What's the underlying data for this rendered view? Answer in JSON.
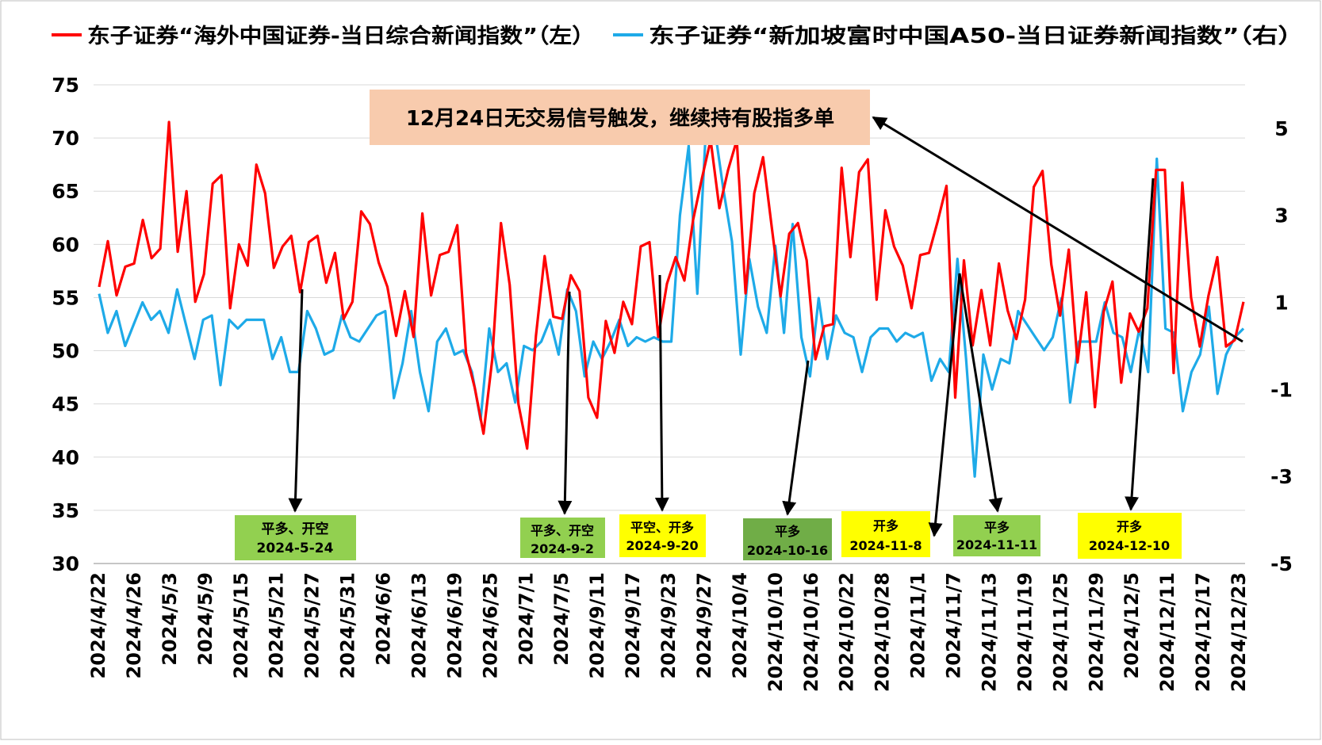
{
  "legend": {
    "red_label": "东子证券“海外中国证券-当日综合新闻指数”（左）",
    "blue_label": "东子证券“新加坡富时中国A50-当日证券新闻指数”（右）"
  },
  "callout": {
    "text": "12月24日无交易信号触发，继续持有股指多单"
  },
  "colors": {
    "red": "#FF0000",
    "blue": "#1EAAE8",
    "callout_bg": "#F8CBAD",
    "green": "#92D050",
    "dark_green": "#70AD47",
    "yellow": "#FFFF00"
  },
  "signals": [
    {
      "line1": "平多、开空",
      "line2": "2024-5-24"
    },
    {
      "line1": "平多、开空",
      "line2": "2024-9-2"
    },
    {
      "line1": "平空、开多",
      "line2": "2024-9-20"
    },
    {
      "line1": "平多",
      "line2": "2024-10-16"
    },
    {
      "line1": "开多",
      "line2": "2024-11-8"
    },
    {
      "line1": "平多",
      "line2": "2024-11-11"
    },
    {
      "line1": "开多",
      "line2": "2024-12-10"
    }
  ],
  "chart_data": {
    "type": "line",
    "x_labels": [
      "2024/4/22",
      "2024/4/26",
      "2024/5/3",
      "2024/5/9",
      "2024/5/15",
      "2024/5/21",
      "2024/5/27",
      "2024/5/31",
      "2024/6/6",
      "2024/6/13",
      "2024/6/19",
      "2024/6/25",
      "2024/7/1",
      "2024/7/5",
      "2024/9/11",
      "2024/9/17",
      "2024/9/23",
      "2024/9/27",
      "2024/10/4",
      "2024/10/10",
      "2024/10/16",
      "2024/10/22",
      "2024/10/28",
      "2024/11/1",
      "2024/11/7",
      "2024/11/13",
      "2024/11/19",
      "2024/11/25",
      "2024/11/29",
      "2024/12/5",
      "2024/12/11",
      "2024/12/17",
      "2024/12/23"
    ],
    "y_left": {
      "min": 30,
      "max": 75,
      "ticks": [
        30,
        35,
        40,
        45,
        50,
        55,
        60,
        65,
        70,
        75
      ]
    },
    "y_right": {
      "min": -5,
      "max": 6,
      "ticks": [
        -5,
        -3,
        -1,
        1,
        3,
        5
      ]
    },
    "series": [
      {
        "name": "东子证券“海外中国证券-当日综合新闻指数”（左）",
        "axis": "left",
        "values": [
          56.0,
          60.3,
          55.2,
          57.9,
          58.2,
          62.3,
          58.7,
          59.6,
          71.5,
          59.3,
          65.0,
          54.6,
          57.2,
          65.7,
          66.5,
          54.0,
          60.0,
          58.0,
          67.5,
          64.8,
          57.8,
          59.8,
          60.8,
          55.5,
          60.2,
          60.8,
          56.4,
          59.2,
          53.0,
          54.6,
          63.1,
          61.9,
          58.3,
          56.0,
          51.4,
          55.6,
          51.3,
          62.9,
          55.2,
          59.0,
          59.3,
          61.8,
          49.8,
          46.5,
          42.2,
          49.2,
          62.0,
          56.2,
          45.0,
          40.8,
          51.4,
          58.9,
          53.2,
          53.0,
          57.1,
          55.6,
          45.6,
          43.7,
          52.8,
          49.8,
          54.6,
          52.5,
          59.8,
          60.2,
          51.3,
          56.3,
          58.8,
          56.6,
          62.3,
          66.2,
          69.8,
          63.4,
          67.0,
          69.8,
          55.4,
          64.8,
          68.2,
          61.6,
          55.1,
          61.0,
          62.0,
          58.5,
          49.2,
          52.3,
          52.5,
          67.2,
          58.8,
          66.8,
          68.0,
          54.8,
          63.2,
          59.8,
          58.0,
          54.0,
          59.0,
          59.2,
          62.2,
          65.5,
          45.6,
          58.5,
          50.5,
          55.7,
          50.5,
          58.2,
          53.8,
          51.1,
          54.8,
          65.4,
          66.9,
          58.1,
          53.3,
          59.5,
          48.9,
          55.5,
          44.7,
          53.7,
          56.5,
          47.0,
          53.5,
          51.8,
          54.0,
          67.0,
          67.0,
          47.9,
          65.8,
          55.0,
          50.4,
          55.2,
          58.8,
          50.4,
          51.0,
          54.6
        ]
      },
      {
        "name": "东子证券“新加坡富时中国A50-当日证券新闻指数”（右）",
        "axis": "right",
        "values": [
          1.2,
          0.3,
          0.8,
          0.0,
          0.5,
          1.0,
          0.6,
          0.8,
          0.3,
          1.3,
          0.5,
          -0.3,
          0.6,
          0.7,
          -0.9,
          0.6,
          0.4,
          0.6,
          0.6,
          0.6,
          -0.3,
          0.2,
          -0.6,
          -0.6,
          0.8,
          0.4,
          -0.2,
          -0.1,
          0.7,
          0.2,
          0.1,
          0.4,
          0.7,
          0.8,
          -1.2,
          -0.4,
          0.8,
          -0.6,
          -1.5,
          0.1,
          0.4,
          -0.2,
          -0.1,
          -0.6,
          -1.7,
          0.4,
          -0.6,
          -0.4,
          -1.3,
          0.0,
          -0.1,
          0.1,
          0.6,
          -0.2,
          1.3,
          0.8,
          -0.7,
          0.1,
          -0.3,
          0.1,
          0.6,
          0.0,
          0.2,
          0.1,
          0.2,
          0.1,
          0.1,
          3.0,
          4.6,
          1.2,
          5.0,
          5.0,
          3.6,
          2.4,
          -0.2,
          2.0,
          0.9,
          0.3,
          2.3,
          0.3,
          2.8,
          0.2,
          -0.7,
          1.1,
          -0.3,
          0.7,
          0.3,
          0.2,
          -0.6,
          0.2,
          0.4,
          0.4,
          0.1,
          0.3,
          0.2,
          0.3,
          -0.8,
          -0.3,
          -0.6,
          2.0,
          -0.3,
          -3.0,
          -0.2,
          -1.0,
          -0.3,
          -0.4,
          0.8,
          0.5,
          0.2,
          -0.1,
          0.2,
          1.1,
          -1.3,
          0.1,
          0.1,
          0.1,
          1.0,
          0.3,
          0.2,
          -0.6,
          0.4,
          -0.6,
          4.3,
          0.4,
          0.3,
          -1.5,
          -0.6,
          -0.2,
          0.9,
          -1.1,
          -0.2,
          0.2,
          0.4
        ]
      }
    ]
  }
}
